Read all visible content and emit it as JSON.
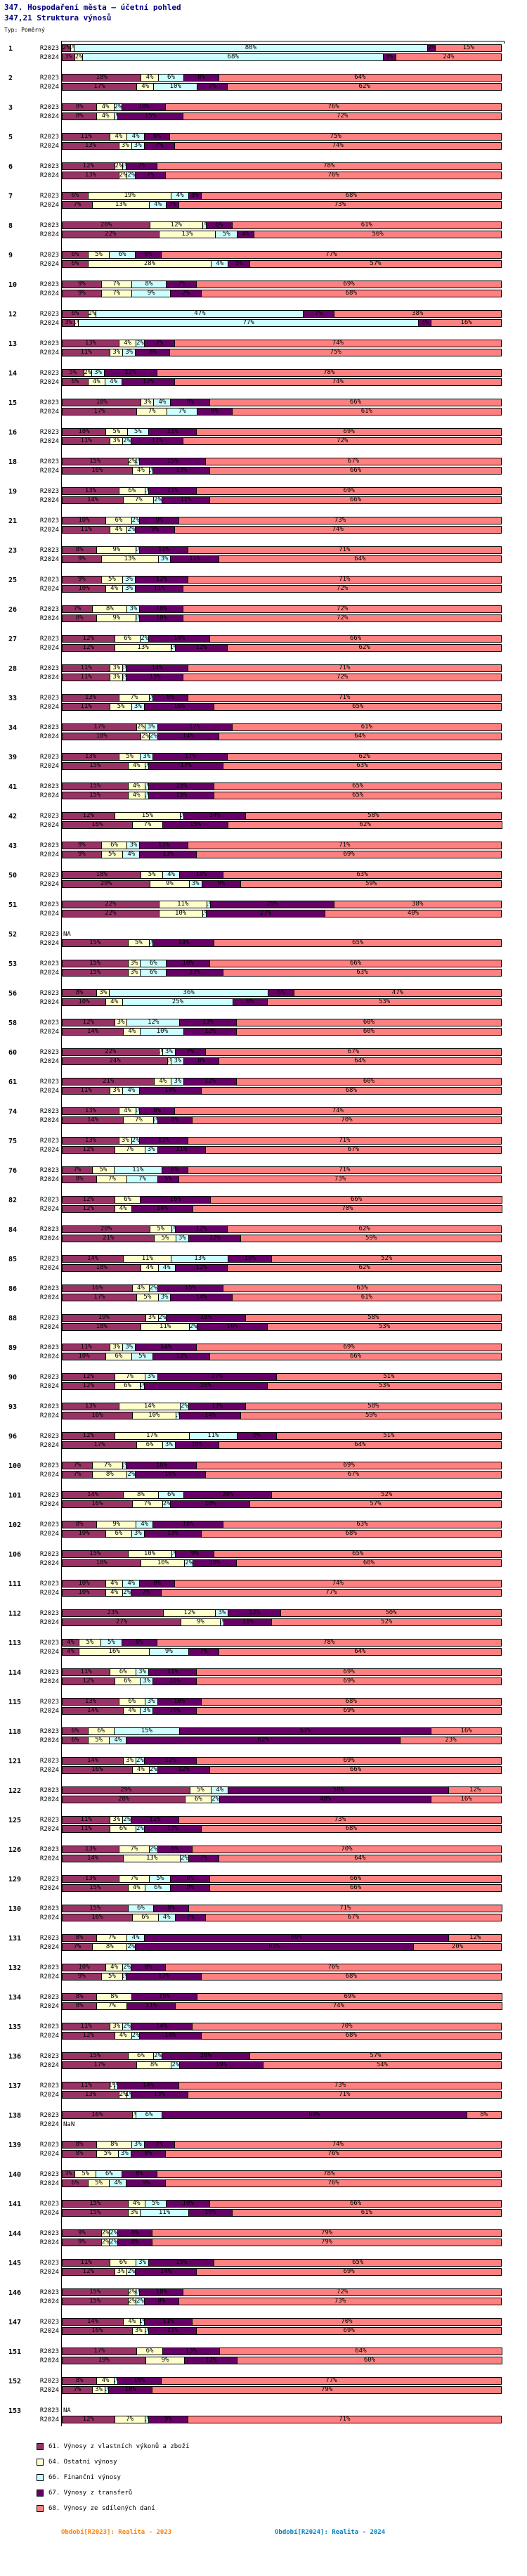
{
  "title": "347. Hospodaření města – účetní pohled",
  "subtitle": "347,21 Struktura výnosů",
  "type_label": "Typ: Poměrný",
  "footers": {
    "left": "Období[R2023]: Realita - 2023",
    "right": "Období[R2024]: Realita - 2024"
  },
  "chart_data": {
    "type": "bar",
    "variant": "horizontal-100pct-stacked",
    "value_suffix": "%",
    "xlim": [
      0,
      100
    ],
    "grid": false,
    "legend_position": "bottom-left",
    "bar_labels": [
      "R2023",
      "R2024"
    ],
    "series": [
      {
        "key": "61",
        "label": "61. Výnosy z vlastních výkonů a zboží",
        "color": "#993366"
      },
      {
        "key": "64",
        "label": "64. Ostatní výnosy",
        "color": "#FFFFCC"
      },
      {
        "key": "66",
        "label": "66. Finanční výnosy",
        "color": "#CCFFFF"
      },
      {
        "key": "67",
        "label": "67. Výnosy z transferů",
        "color": "#660066"
      },
      {
        "key": "68",
        "label": "68. Výnosy ze sdílených daní",
        "color": "#FF8080"
      }
    ],
    "rows": [
      {
        "id": "1",
        "R2023": [
          2,
          1,
          80,
          2,
          15
        ],
        "R2024": [
          3,
          2,
          68,
          3,
          24
        ]
      },
      {
        "id": "2",
        "R2023": [
          18,
          4,
          6,
          8,
          64
        ],
        "R2024": [
          17,
          4,
          10,
          7,
          62
        ]
      },
      {
        "id": "3",
        "R2023": [
          8,
          4,
          2,
          10,
          76
        ],
        "R2024": [
          8,
          4,
          1,
          15,
          72
        ]
      },
      {
        "id": "5",
        "R2023": [
          11,
          4,
          4,
          6,
          75
        ],
        "R2024": [
          13,
          3,
          3,
          7,
          74
        ]
      },
      {
        "id": "6",
        "R2023": [
          12,
          2,
          1,
          7,
          78
        ],
        "R2024": [
          13,
          2,
          2,
          7,
          76
        ]
      },
      {
        "id": "7",
        "R2023": [
          6,
          19,
          4,
          3,
          68
        ],
        "R2024": [
          7,
          13,
          4,
          3,
          73
        ]
      },
      {
        "id": "8",
        "R2023": [
          20,
          12,
          1,
          6,
          61
        ],
        "R2024": [
          22,
          13,
          5,
          4,
          56
        ]
      },
      {
        "id": "9",
        "R2023": [
          6,
          5,
          6,
          6,
          77
        ],
        "R2024": [
          6,
          28,
          4,
          5,
          57
        ]
      },
      {
        "id": "10",
        "R2023": [
          9,
          7,
          8,
          7,
          69
        ],
        "R2024": [
          9,
          7,
          9,
          7,
          68
        ]
      },
      {
        "id": "12",
        "R2023": [
          6,
          2,
          47,
          7,
          38
        ],
        "R2024": [
          3,
          1,
          77,
          3,
          16
        ]
      },
      {
        "id": "13",
        "R2023": [
          13,
          4,
          2,
          7,
          74
        ],
        "R2024": [
          11,
          3,
          3,
          8,
          75
        ]
      },
      {
        "id": "14",
        "R2023": [
          5,
          2,
          3,
          12,
          78
        ],
        "R2024": [
          6,
          4,
          4,
          12,
          74
        ]
      },
      {
        "id": "15",
        "R2023": [
          18,
          3,
          4,
          9,
          66
        ],
        "R2024": [
          17,
          7,
          7,
          8,
          61
        ]
      },
      {
        "id": "16",
        "R2023": [
          10,
          5,
          5,
          11,
          69
        ],
        "R2024": [
          11,
          3,
          2,
          12,
          72
        ]
      },
      {
        "id": "18",
        "R2023": [
          15,
          2,
          1,
          15,
          67
        ],
        "R2024": [
          16,
          4,
          1,
          13,
          66
        ]
      },
      {
        "id": "19",
        "R2023": [
          13,
          6,
          1,
          11,
          69
        ],
        "R2024": [
          14,
          7,
          2,
          11,
          66
        ]
      },
      {
        "id": "21",
        "R2023": [
          10,
          6,
          2,
          9,
          73
        ],
        "R2024": [
          11,
          4,
          2,
          9,
          74
        ]
      },
      {
        "id": "23",
        "R2023": [
          8,
          9,
          1,
          11,
          71
        ],
        "R2024": [
          9,
          13,
          3,
          11,
          64
        ]
      },
      {
        "id": "25",
        "R2023": [
          9,
          5,
          3,
          12,
          71
        ],
        "R2024": [
          10,
          4,
          3,
          11,
          72
        ]
      },
      {
        "id": "26",
        "R2023": [
          7,
          8,
          3,
          10,
          72
        ],
        "R2024": [
          8,
          9,
          1,
          10,
          72
        ]
      },
      {
        "id": "27",
        "R2023": [
          12,
          6,
          2,
          14,
          66
        ],
        "R2024": [
          12,
          13,
          1,
          12,
          62
        ]
      },
      {
        "id": "28",
        "R2023": [
          11,
          3,
          1,
          14,
          71
        ],
        "R2024": [
          11,
          3,
          1,
          13,
          72
        ]
      },
      {
        "id": "33",
        "R2023": [
          13,
          7,
          1,
          8,
          71
        ],
        "R2024": [
          11,
          5,
          3,
          16,
          65
        ]
      },
      {
        "id": "34",
        "R2023": [
          17,
          2,
          3,
          17,
          61
        ],
        "R2024": [
          18,
          2,
          2,
          14,
          64
        ]
      },
      {
        "id": "39",
        "R2023": [
          13,
          5,
          3,
          17,
          62
        ],
        "R2024": [
          15,
          4,
          1,
          17,
          63
        ]
      },
      {
        "id": "41",
        "R2023": [
          15,
          4,
          1,
          15,
          65
        ],
        "R2024": [
          15,
          4,
          1,
          15,
          65
        ]
      },
      {
        "id": "42",
        "R2023": [
          12,
          15,
          1,
          14,
          58
        ],
        "R2024": [
          16,
          7,
          0,
          15,
          62
        ]
      },
      {
        "id": "43",
        "R2023": [
          9,
          6,
          3,
          11,
          71
        ],
        "R2024": [
          9,
          5,
          4,
          13,
          69
        ]
      },
      {
        "id": "50",
        "R2023": [
          18,
          5,
          4,
          10,
          63
        ],
        "R2024": [
          20,
          9,
          3,
          9,
          59
        ]
      },
      {
        "id": "51",
        "R2023": [
          22,
          11,
          1,
          28,
          38
        ],
        "R2024": [
          22,
          10,
          1,
          27,
          40
        ]
      },
      {
        "id": "52",
        "R2023": "NA",
        "R2024": [
          15,
          5,
          1,
          14,
          65
        ]
      },
      {
        "id": "53",
        "R2023": [
          15,
          3,
          6,
          10,
          66
        ],
        "R2024": [
          15,
          3,
          6,
          13,
          63
        ]
      },
      {
        "id": "56",
        "R2023": [
          8,
          3,
          36,
          6,
          47
        ],
        "R2024": [
          10,
          4,
          25,
          8,
          53
        ]
      },
      {
        "id": "58",
        "R2023": [
          12,
          3,
          12,
          13,
          60
        ],
        "R2024": [
          14,
          4,
          10,
          12,
          60
        ]
      },
      {
        "id": "60",
        "R2023": [
          22,
          1,
          3,
          7,
          67
        ],
        "R2024": [
          24,
          1,
          3,
          8,
          64
        ]
      },
      {
        "id": "61",
        "R2023": [
          21,
          4,
          3,
          12,
          60
        ],
        "R2024": [
          11,
          3,
          4,
          14,
          68
        ]
      },
      {
        "id": "74",
        "R2023": [
          13,
          4,
          1,
          8,
          74
        ],
        "R2024": [
          14,
          7,
          1,
          8,
          70
        ]
      },
      {
        "id": "75",
        "R2023": [
          13,
          3,
          2,
          11,
          71
        ],
        "R2024": [
          12,
          7,
          3,
          11,
          67
        ]
      },
      {
        "id": "76",
        "R2023": [
          7,
          5,
          11,
          6,
          71
        ],
        "R2024": [
          8,
          7,
          7,
          5,
          73
        ]
      },
      {
        "id": "82",
        "R2023": [
          12,
          6,
          0,
          16,
          66
        ],
        "R2024": [
          12,
          4,
          0,
          14,
          70
        ]
      },
      {
        "id": "84",
        "R2023": [
          20,
          5,
          1,
          12,
          62
        ],
        "R2024": [
          21,
          5,
          3,
          12,
          59
        ]
      },
      {
        "id": "85",
        "R2023": [
          14,
          11,
          13,
          10,
          52
        ],
        "R2024": [
          18,
          4,
          4,
          12,
          62
        ]
      },
      {
        "id": "86",
        "R2023": [
          16,
          4,
          2,
          15,
          63
        ],
        "R2024": [
          17,
          5,
          3,
          14,
          61
        ]
      },
      {
        "id": "88",
        "R2023": [
          19,
          3,
          2,
          18,
          58
        ],
        "R2024": [
          18,
          11,
          2,
          16,
          53
        ]
      },
      {
        "id": "89",
        "R2023": [
          11,
          3,
          3,
          14,
          69
        ],
        "R2024": [
          10,
          6,
          5,
          13,
          66
        ]
      },
      {
        "id": "90",
        "R2023": [
          12,
          7,
          3,
          27,
          51
        ],
        "R2024": [
          12,
          6,
          1,
          28,
          53
        ]
      },
      {
        "id": "93",
        "R2023": [
          13,
          14,
          2,
          13,
          58
        ],
        "R2024": [
          16,
          10,
          1,
          14,
          59
        ]
      },
      {
        "id": "96",
        "R2023": [
          12,
          17,
          11,
          9,
          51
        ],
        "R2024": [
          17,
          6,
          3,
          10,
          64
        ]
      },
      {
        "id": "100",
        "R2023": [
          7,
          7,
          1,
          16,
          69
        ],
        "R2024": [
          7,
          8,
          2,
          16,
          67
        ]
      },
      {
        "id": "101",
        "R2023": [
          14,
          8,
          6,
          20,
          52
        ],
        "R2024": [
          16,
          7,
          2,
          18,
          57
        ]
      },
      {
        "id": "102",
        "R2023": [
          8,
          9,
          4,
          16,
          63
        ],
        "R2024": [
          10,
          6,
          3,
          13,
          68
        ]
      },
      {
        "id": "106",
        "R2023": [
          15,
          10,
          1,
          9,
          65
        ],
        "R2024": [
          18,
          10,
          2,
          10,
          60
        ]
      },
      {
        "id": "111",
        "R2023": [
          10,
          4,
          4,
          8,
          74
        ],
        "R2024": [
          10,
          4,
          2,
          7,
          77
        ]
      },
      {
        "id": "112",
        "R2023": [
          23,
          12,
          3,
          12,
          50
        ],
        "R2024": [
          27,
          9,
          1,
          11,
          52
        ]
      },
      {
        "id": "113",
        "R2023": [
          4,
          5,
          5,
          8,
          78
        ],
        "R2024": [
          4,
          16,
          9,
          7,
          64
        ]
      },
      {
        "id": "114",
        "R2023": [
          11,
          6,
          3,
          11,
          69
        ],
        "R2024": [
          12,
          6,
          3,
          10,
          69
        ]
      },
      {
        "id": "115",
        "R2023": [
          13,
          6,
          3,
          10,
          68
        ],
        "R2024": [
          14,
          4,
          3,
          10,
          69
        ]
      },
      {
        "id": "118",
        "R2023": [
          6,
          6,
          15,
          57,
          16
        ],
        "R2024": [
          6,
          5,
          4,
          62,
          23
        ]
      },
      {
        "id": "121",
        "R2023": [
          14,
          3,
          2,
          12,
          69
        ],
        "R2024": [
          16,
          4,
          2,
          12,
          66
        ]
      },
      {
        "id": "122",
        "R2023": [
          29,
          5,
          4,
          50,
          12
        ],
        "R2024": [
          28,
          6,
          2,
          48,
          16
        ]
      },
      {
        "id": "125",
        "R2023": [
          11,
          3,
          2,
          11,
          73
        ],
        "R2024": [
          11,
          6,
          2,
          13,
          68
        ]
      },
      {
        "id": "126",
        "R2023": [
          13,
          7,
          2,
          8,
          70
        ],
        "R2024": [
          14,
          13,
          2,
          7,
          64
        ]
      },
      {
        "id": "129",
        "R2023": [
          13,
          7,
          5,
          9,
          66
        ],
        "R2024": [
          15,
          4,
          6,
          9,
          66
        ]
      },
      {
        "id": "130",
        "R2023": [
          15,
          0,
          6,
          8,
          71
        ],
        "R2024": [
          16,
          6,
          4,
          7,
          67
        ]
      },
      {
        "id": "131",
        "R2023": [
          8,
          7,
          4,
          69,
          12
        ],
        "R2024": [
          7,
          8,
          2,
          63,
          20
        ]
      },
      {
        "id": "132",
        "R2023": [
          10,
          4,
          2,
          8,
          76
        ],
        "R2024": [
          9,
          5,
          1,
          17,
          68
        ]
      },
      {
        "id": "134",
        "R2023": [
          8,
          8,
          0,
          15,
          69
        ],
        "R2024": [
          8,
          7,
          0,
          11,
          74
        ]
      },
      {
        "id": "135",
        "R2023": [
          11,
          3,
          2,
          14,
          70
        ],
        "R2024": [
          12,
          4,
          2,
          14,
          68
        ]
      },
      {
        "id": "136",
        "R2023": [
          15,
          6,
          2,
          20,
          57
        ],
        "R2024": [
          17,
          8,
          2,
          19,
          54
        ]
      },
      {
        "id": "137",
        "R2023": [
          11,
          1,
          1,
          14,
          73
        ],
        "R2024": [
          13,
          2,
          1,
          13,
          71
        ]
      },
      {
        "id": "138",
        "R2023": [
          16,
          1,
          6,
          69,
          8
        ],
        "R2024": "NaN"
      },
      {
        "id": "139",
        "R2023": [
          8,
          8,
          3,
          7,
          74
        ],
        "R2024": [
          8,
          5,
          3,
          8,
          76
        ]
      },
      {
        "id": "140",
        "R2023": [
          3,
          5,
          6,
          8,
          78
        ],
        "R2024": [
          6,
          5,
          4,
          9,
          76
        ]
      },
      {
        "id": "141",
        "R2023": [
          15,
          4,
          5,
          10,
          66
        ],
        "R2024": [
          15,
          3,
          11,
          10,
          61
        ]
      },
      {
        "id": "144",
        "R2023": [
          9,
          2,
          2,
          8,
          79
        ],
        "R2024": [
          9,
          2,
          2,
          8,
          79
        ]
      },
      {
        "id": "145",
        "R2023": [
          11,
          6,
          3,
          15,
          65
        ],
        "R2024": [
          12,
          3,
          2,
          14,
          69
        ]
      },
      {
        "id": "146",
        "R2023": [
          15,
          2,
          1,
          10,
          72
        ],
        "R2024": [
          15,
          2,
          2,
          8,
          73
        ]
      },
      {
        "id": "147",
        "R2023": [
          14,
          4,
          1,
          11,
          70
        ],
        "R2024": [
          16,
          3,
          1,
          11,
          69
        ]
      },
      {
        "id": "151",
        "R2023": [
          17,
          6,
          0,
          13,
          64
        ],
        "R2024": [
          19,
          9,
          0,
          12,
          60
        ]
      },
      {
        "id": "152",
        "R2023": [
          8,
          4,
          1,
          10,
          77
        ],
        "R2024": [
          7,
          3,
          1,
          10,
          79
        ]
      },
      {
        "id": "153",
        "R2023": "NA",
        "R2024": [
          12,
          7,
          1,
          9,
          71
        ]
      }
    ]
  }
}
